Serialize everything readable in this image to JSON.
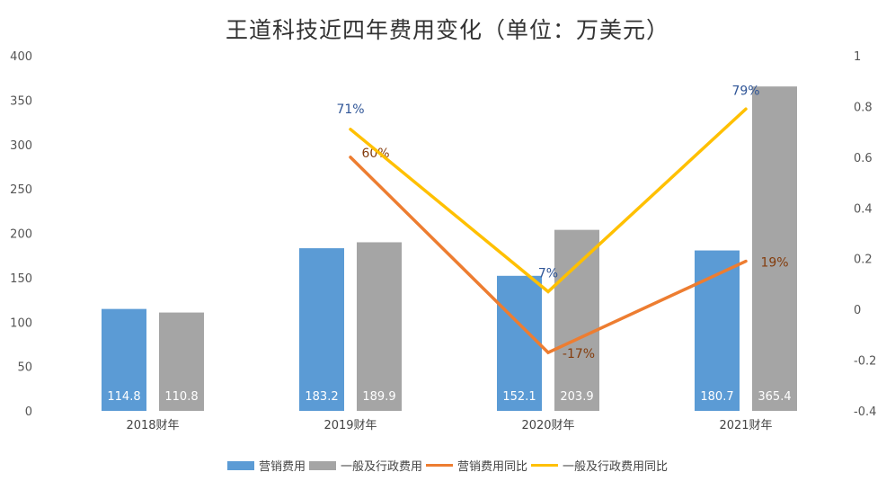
{
  "title": "王道科技近四年费用变化（单位：万美元）",
  "chart_data": {
    "type": "bar",
    "categories": [
      "2018财年",
      "2019财年",
      "2020财年",
      "2021财年"
    ],
    "series": [
      {
        "name": "营销费用",
        "kind": "bar",
        "axis": "left",
        "color": "#5B9BD5",
        "values": [
          114.8,
          183.2,
          152.1,
          180.7
        ],
        "labels": [
          "114.8",
          "183.2",
          "152.1",
          "180.7"
        ]
      },
      {
        "name": "一般及行政费用",
        "kind": "bar",
        "axis": "left",
        "color": "#A5A5A5",
        "values": [
          110.8,
          189.9,
          203.9,
          365.4
        ],
        "labels": [
          "110.8",
          "189.9",
          "203.9",
          "365.4"
        ]
      },
      {
        "name": "营销费用同比",
        "kind": "line",
        "axis": "right",
        "color": "#ED7D31",
        "label_color": "#843C0C",
        "values": [
          null,
          0.6,
          -0.17,
          0.19
        ],
        "labels": [
          "",
          "60%",
          "-17%",
          "19%"
        ]
      },
      {
        "name": "一般及行政费用同比",
        "kind": "line",
        "axis": "right",
        "color": "#FFC000",
        "label_color": "#2F5597",
        "values": [
          null,
          0.71,
          0.07,
          0.79
        ],
        "labels": [
          "",
          "71%",
          "7%",
          "79%"
        ]
      }
    ],
    "y_left": {
      "min": 0,
      "max": 400,
      "ticks": [
        "0",
        "50",
        "100",
        "150",
        "200",
        "250",
        "300",
        "350",
        "400"
      ]
    },
    "y_right": {
      "min": -0.4,
      "max": 1,
      "ticks": [
        "-0.4",
        "-0.2",
        "0",
        "0.2",
        "0.4",
        "0.6",
        "0.8",
        "1"
      ]
    },
    "grid": false,
    "legend_position": "bottom"
  }
}
